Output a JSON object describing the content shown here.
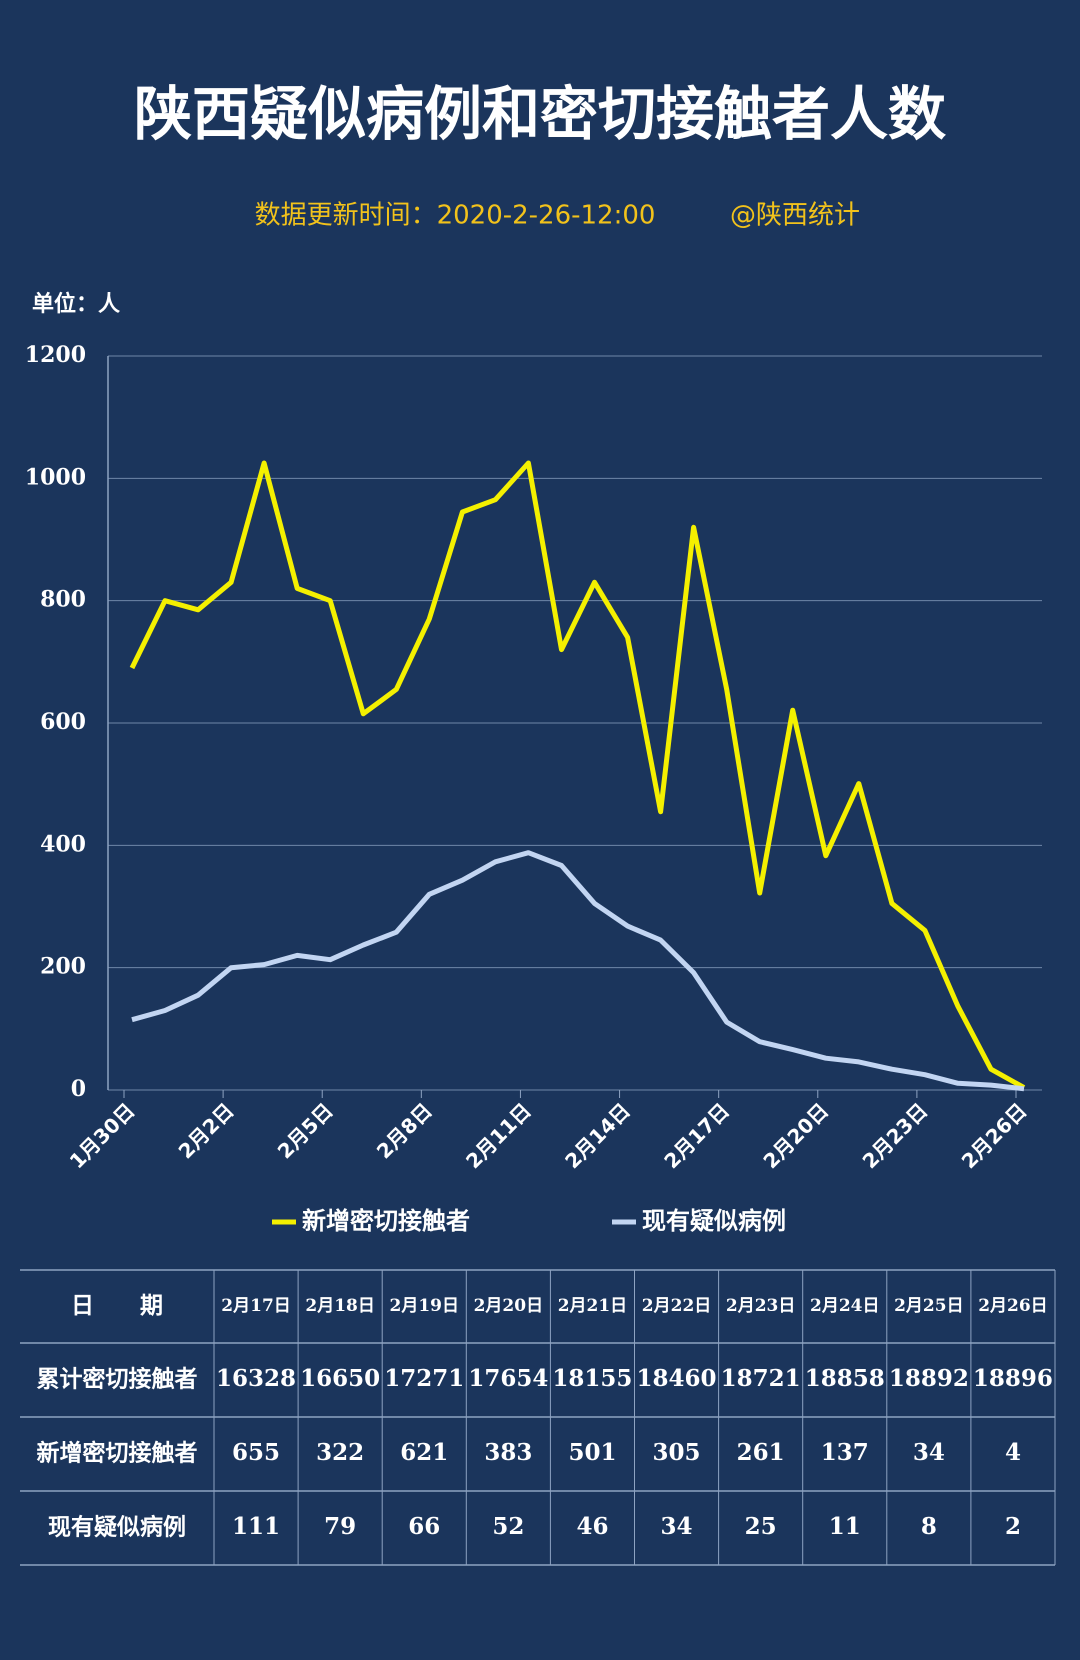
{
  "title": "陕西疑似病例和密切接触者人数",
  "subtitle": "数据更新时间：2020-2-26-12:00",
  "source": "@陕西统计",
  "unit": "单位：人",
  "chart_data": {
    "type": "line",
    "categories": [
      "1月30日",
      null,
      null,
      "2月2日",
      null,
      null,
      "2月5日",
      null,
      null,
      "2月8日",
      null,
      null,
      "2月11日",
      null,
      null,
      "2月14日",
      null,
      null,
      "2月17日",
      null,
      null,
      "2月20日",
      null,
      null,
      "2月23日",
      null,
      null,
      "2月26日"
    ],
    "series": [
      {
        "name": "新增密切接触者",
        "color": "#f4f000",
        "values": [
          690,
          800,
          785,
          830,
          1025,
          820,
          800,
          615,
          655,
          770,
          945,
          965,
          1025,
          720,
          830,
          740,
          455,
          920,
          655,
          322,
          621,
          383,
          501,
          305,
          261,
          137,
          34,
          4
        ]
      },
      {
        "name": "现有疑似病例",
        "color": "#c2d5f2",
        "values": [
          115,
          130,
          155,
          200,
          205,
          220,
          213,
          237,
          258,
          320,
          343,
          373,
          388,
          367,
          305,
          268,
          245,
          192,
          111,
          79,
          66,
          52,
          46,
          34,
          25,
          11,
          8,
          2
        ]
      }
    ],
    "ylim": [
      0,
      1200
    ],
    "yticks": [
      0,
      200,
      400,
      600,
      800,
      1000,
      1200
    ],
    "grid": true
  },
  "table": {
    "header": [
      "日　　期",
      "2月17日",
      "2月18日",
      "2月19日",
      "2月20日",
      "2月21日",
      "2月22日",
      "2月23日",
      "2月24日",
      "2月25日",
      "2月26日"
    ],
    "rows": [
      [
        "累计密切接触者",
        16328,
        16650,
        17271,
        17654,
        18155,
        18460,
        18721,
        18858,
        18892,
        18896
      ],
      [
        "新增密切接触者",
        655,
        322,
        621,
        383,
        501,
        305,
        261,
        137,
        34,
        4
      ],
      [
        "现有疑似病例",
        111,
        79,
        66,
        52,
        46,
        34,
        25,
        11,
        8,
        2
      ]
    ]
  }
}
